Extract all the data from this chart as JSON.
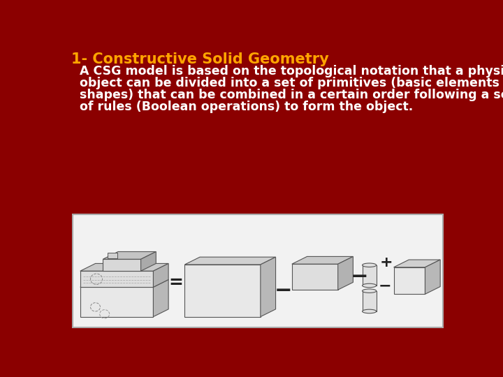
{
  "bg_color": "#8B0000",
  "title": "1- Constructive Solid Geometry",
  "title_color": "#FFA500",
  "title_fontsize": 15,
  "body_lines": [
    "  A CSG model is based on the topological notation that a physical",
    "  object can be divided into a set of primitives (basic elements or",
    "  shapes) that can be combined in a certain order following a set",
    "  of rules (Boolean operations) to form the object."
  ],
  "body_color": "#FFFFFF",
  "body_fontsize": 12.5,
  "box_face": "#F2F2F2",
  "box_edge": "#AAAAAA",
  "shape_face": "#E8E8E8",
  "shape_top": "#D0D0D0",
  "shape_side": "#B8B8B8",
  "dark_side": "#999999",
  "edge_color": "#555555"
}
